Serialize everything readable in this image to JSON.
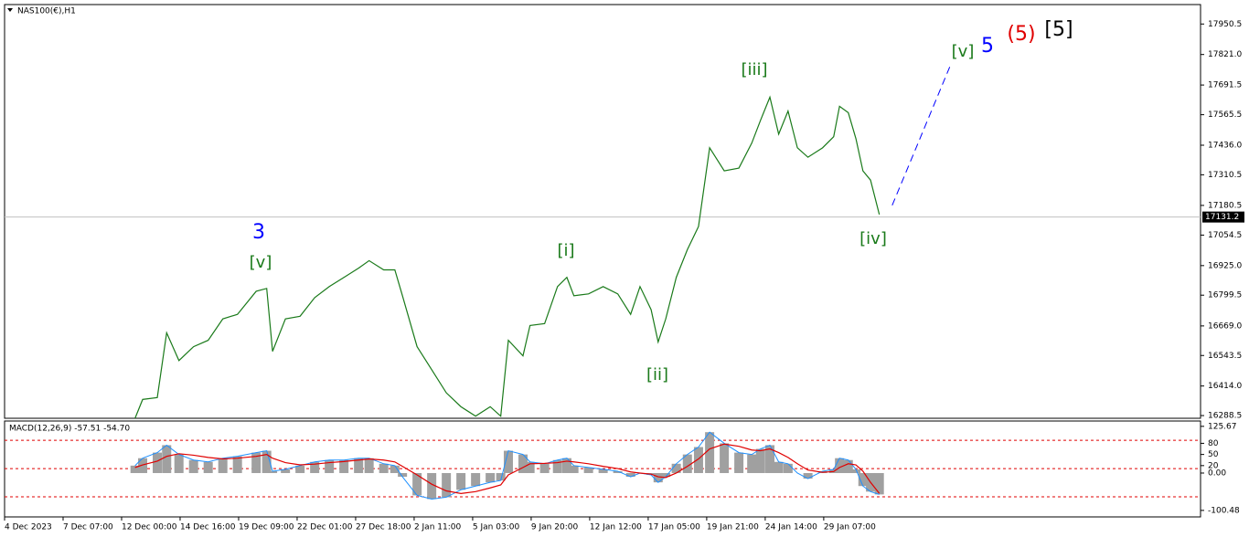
{
  "chart_data": [
    {
      "type": "line",
      "title": "NAS100(€),H1",
      "x": [
        2.23,
        2.36,
        2.61,
        2.77,
        2.98,
        3.23,
        3.48,
        3.73,
        3.98,
        4.3,
        4.48,
        4.58,
        4.8,
        5.05,
        5.3,
        5.55,
        5.8,
        6.05,
        6.23,
        6.48,
        6.67,
        6.8,
        7.05,
        7.3,
        7.55,
        7.8,
        8.05,
        8.3,
        8.48,
        8.61,
        8.86,
        8.98,
        9.23,
        9.45,
        9.61,
        9.73,
        9.98,
        10.23,
        10.48,
        10.7,
        10.86,
        11.05,
        11.17,
        11.3,
        11.48,
        11.67,
        11.86,
        12.05,
        12.3,
        12.55,
        12.77,
        12.92,
        13.08,
        13.23,
        13.39,
        13.55,
        13.73,
        13.98,
        14.17,
        14.27,
        14.42,
        14.55,
        14.67,
        14.8,
        14.95
      ],
      "series": [
        {
          "color": "#1a7a1a",
          "values": [
            16277,
            16357,
            16365,
            16640,
            16522,
            16581,
            16608,
            16699,
            16718,
            16816,
            16828,
            16561,
            16699,
            16710,
            16789,
            16836,
            16875,
            16914,
            16946,
            16907,
            16907,
            16797,
            16581,
            16483,
            16385,
            16326,
            16286,
            16326,
            16286,
            16608,
            16542,
            16671,
            16679,
            16836,
            16875,
            16797,
            16805,
            16836,
            16805,
            16718,
            16836,
            16738,
            16601,
            16699,
            16875,
            16993,
            17091,
            17425,
            17327,
            17339,
            17445,
            17542,
            17640,
            17483,
            17581,
            17425,
            17385,
            17425,
            17472,
            17601,
            17574,
            17464,
            17327,
            17288,
            17142
          ]
        }
      ],
      "projection": {
        "x": [
          15.17,
          16.17
        ],
        "values": [
          17181,
          17778
        ],
        "color": "#0000ff"
      },
      "last_price": 17131.2,
      "xlim": [
        0,
        20.44
      ],
      "xticks": [
        {
          "value": 0,
          "label": "4 Dec 2023"
        },
        {
          "value": 1,
          "label": "7 Dec 07:00"
        },
        {
          "value": 2,
          "label": "12 Dec 00:00"
        },
        {
          "value": 3,
          "label": "14 Dec 16:00"
        },
        {
          "value": 4,
          "label": "19 Dec 09:00"
        },
        {
          "value": 5,
          "label": "22 Dec 01:00"
        },
        {
          "value": 6,
          "label": "27 Dec 18:00"
        },
        {
          "value": 7,
          "label": "2 Jan 11:00"
        },
        {
          "value": 8,
          "label": "5 Jan 03:00"
        },
        {
          "value": 9,
          "label": "9 Jan 20:00"
        },
        {
          "value": 10,
          "label": "12 Jan 12:00"
        },
        {
          "value": 11,
          "label": "17 Jan 05:00"
        },
        {
          "value": 12,
          "label": "19 Jan 21:00"
        },
        {
          "value": 13,
          "label": "24 Jan 14:00"
        },
        {
          "value": 14,
          "label": "29 Jan 07:00"
        }
      ],
      "ylim": [
        16277,
        18033
      ],
      "yticks": [
        17950.5,
        {
          "value": 17821,
          "label": "17821.0"
        },
        17691.5,
        17565.5,
        {
          "value": 17436,
          "label": "17436.0"
        },
        17310.5,
        17180.5,
        17054.5,
        {
          "value": 16925,
          "label": "16925.0"
        },
        16799.5,
        {
          "value": 16669,
          "label": "16669.0"
        },
        16543.5,
        {
          "value": 16414,
          "label": "16414.0"
        },
        16288.5
      ],
      "annotations": [
        {
          "text": "3",
          "color": "#0000ff"
        },
        {
          "text": "[v]",
          "color": "#1a7a1a"
        },
        {
          "text": "[i]",
          "color": "#1a7a1a"
        },
        {
          "text": "[ii]",
          "color": "#1a7a1a"
        },
        {
          "text": "[iii]",
          "color": "#1a7a1a"
        },
        {
          "text": "[iv]",
          "color": "#1a7a1a"
        },
        {
          "text": "[v]",
          "color": "#1a7a1a"
        },
        {
          "text": "5",
          "color": "#0000ff"
        },
        {
          "text": "(5)",
          "color": "#e00000"
        },
        {
          "text": "[5]",
          "color": "#000000"
        }
      ]
    },
    {
      "type": "macd",
      "title": "MACD(12,26,9) -57.51 -54.70",
      "series": [
        {
          "color": "#a0a0a0",
          "values": [
            20,
            40,
            55,
            75,
            50,
            35,
            30,
            40,
            45,
            55,
            60,
            5,
            10,
            20,
            30,
            35,
            35,
            40,
            40,
            25,
            20,
            -10,
            -60,
            -70,
            -65,
            -45,
            -35,
            -25,
            -20,
            60,
            50,
            30,
            25,
            35,
            40,
            20,
            15,
            10,
            5,
            -10,
            0,
            -5,
            -25,
            -10,
            25,
            50,
            70,
            110,
            80,
            55,
            50,
            65,
            75,
            30,
            25,
            0,
            -15,
            5,
            10,
            40,
            35,
            10,
            -35,
            -50,
            -57.51
          ]
        },
        {
          "color": "#e00000",
          "values": [
            15,
            22,
            32,
            45,
            52,
            48,
            42,
            38,
            40,
            45,
            50,
            40,
            28,
            22,
            24,
            28,
            31,
            35,
            38,
            35,
            30,
            18,
            -5,
            -30,
            -48,
            -55,
            -50,
            -40,
            -32,
            -5,
            15,
            25,
            26,
            28,
            32,
            30,
            25,
            18,
            12,
            3,
            0,
            -3,
            -10,
            -12,
            0,
            18,
            38,
            65,
            78,
            72,
            62,
            60,
            65,
            55,
            42,
            25,
            8,
            2,
            4,
            15,
            25,
            22,
            5,
            -25,
            -54.7
          ]
        }
      ],
      "levels": [
        88,
        12,
        -64
      ],
      "ylim": [
        -118,
        140
      ],
      "yticks": [
        125.67,
        80,
        50,
        {
          "value": 0,
          "label": "0.00"
        },
        20,
        -100.48
      ]
    }
  ]
}
